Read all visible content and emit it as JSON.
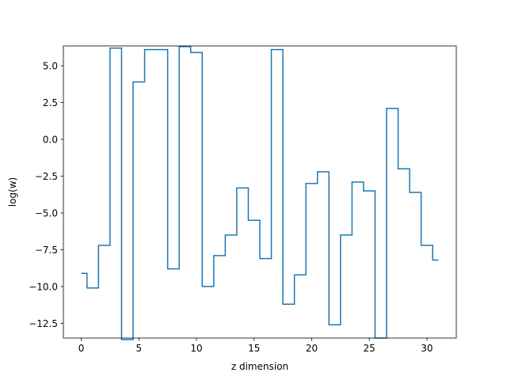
{
  "chart_data": {
    "type": "line",
    "drawstyle": "steps-mid",
    "title": "",
    "xlabel": "z dimension",
    "ylabel": "log(w)",
    "xlim": [
      -1.55,
      32.55
    ],
    "ylim": [
      -13.5,
      6.35
    ],
    "xticks": [
      0,
      5,
      10,
      15,
      20,
      25,
      30
    ],
    "xtick_labels": [
      "0",
      "5",
      "10",
      "15",
      "20",
      "25",
      "30"
    ],
    "yticks": [
      -12.5,
      -10.0,
      -7.5,
      -5.0,
      -2.5,
      0.0,
      2.5,
      5.0
    ],
    "ytick_labels": [
      "−12.5",
      "−10.0",
      "−7.5",
      "−5.0",
      "−2.5",
      "0.0",
      "2.5",
      "5.0"
    ],
    "grid": false,
    "color": "#1f77b4",
    "series": [
      {
        "x": [
          0,
          1,
          2,
          3,
          4,
          5,
          6,
          7,
          8,
          9,
          10,
          11,
          12,
          13,
          14,
          15,
          16,
          17,
          18,
          19,
          20,
          21,
          22,
          23,
          24,
          25,
          26,
          27,
          28,
          29,
          30,
          31
        ],
        "y": [
          -9.1,
          -10.1,
          -7.2,
          6.2,
          -13.6,
          3.9,
          6.1,
          6.1,
          -8.8,
          6.3,
          5.9,
          -10.0,
          -7.9,
          -6.5,
          -3.3,
          -5.5,
          -8.1,
          6.1,
          -11.2,
          -9.2,
          -3.0,
          -2.2,
          -12.6,
          -6.5,
          -2.9,
          -3.5,
          -13.5,
          2.1,
          -2.0,
          -3.6,
          -7.2,
          -8.2
        ]
      }
    ]
  }
}
